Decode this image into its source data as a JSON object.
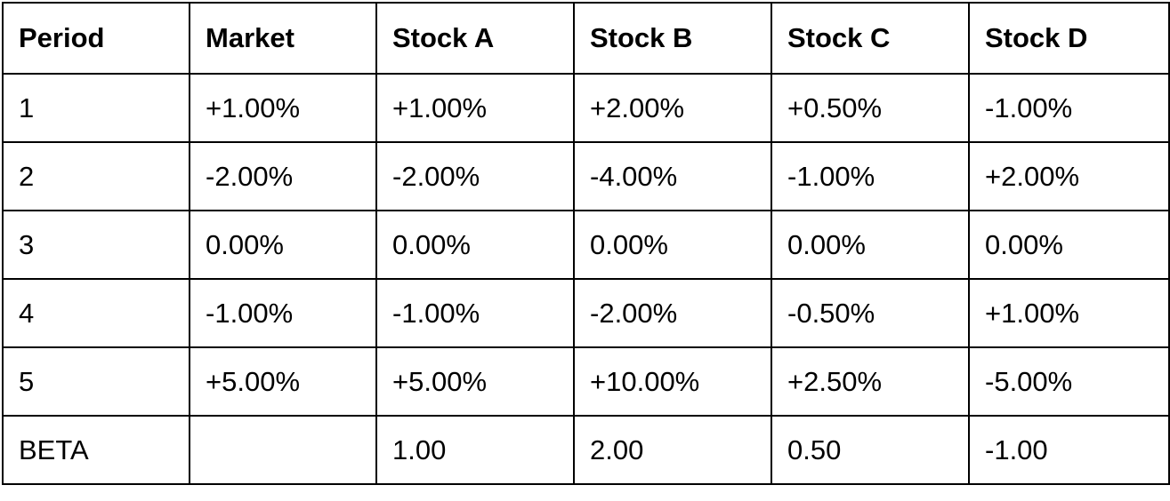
{
  "table": {
    "header": [
      "Period",
      "Market",
      "Stock A",
      "Stock B",
      "Stock C",
      "Stock D"
    ],
    "rows": [
      [
        "1",
        "+1.00%",
        "+1.00%",
        "+2.00%",
        "+0.50%",
        "-1.00%"
      ],
      [
        "2",
        "-2.00%",
        "-2.00%",
        "-4.00%",
        "-1.00%",
        "+2.00%"
      ],
      [
        "3",
        "0.00%",
        "0.00%",
        "0.00%",
        "0.00%",
        "0.00%"
      ],
      [
        "4",
        "-1.00%",
        "-1.00%",
        "-2.00%",
        "-0.50%",
        "+1.00%"
      ],
      [
        "5",
        "+5.00%",
        "+5.00%",
        "+10.00%",
        "+2.50%",
        "-5.00%"
      ],
      [
        "BETA",
        null,
        "1.00",
        "2.00",
        "0.50",
        "-1.00"
      ]
    ]
  }
}
